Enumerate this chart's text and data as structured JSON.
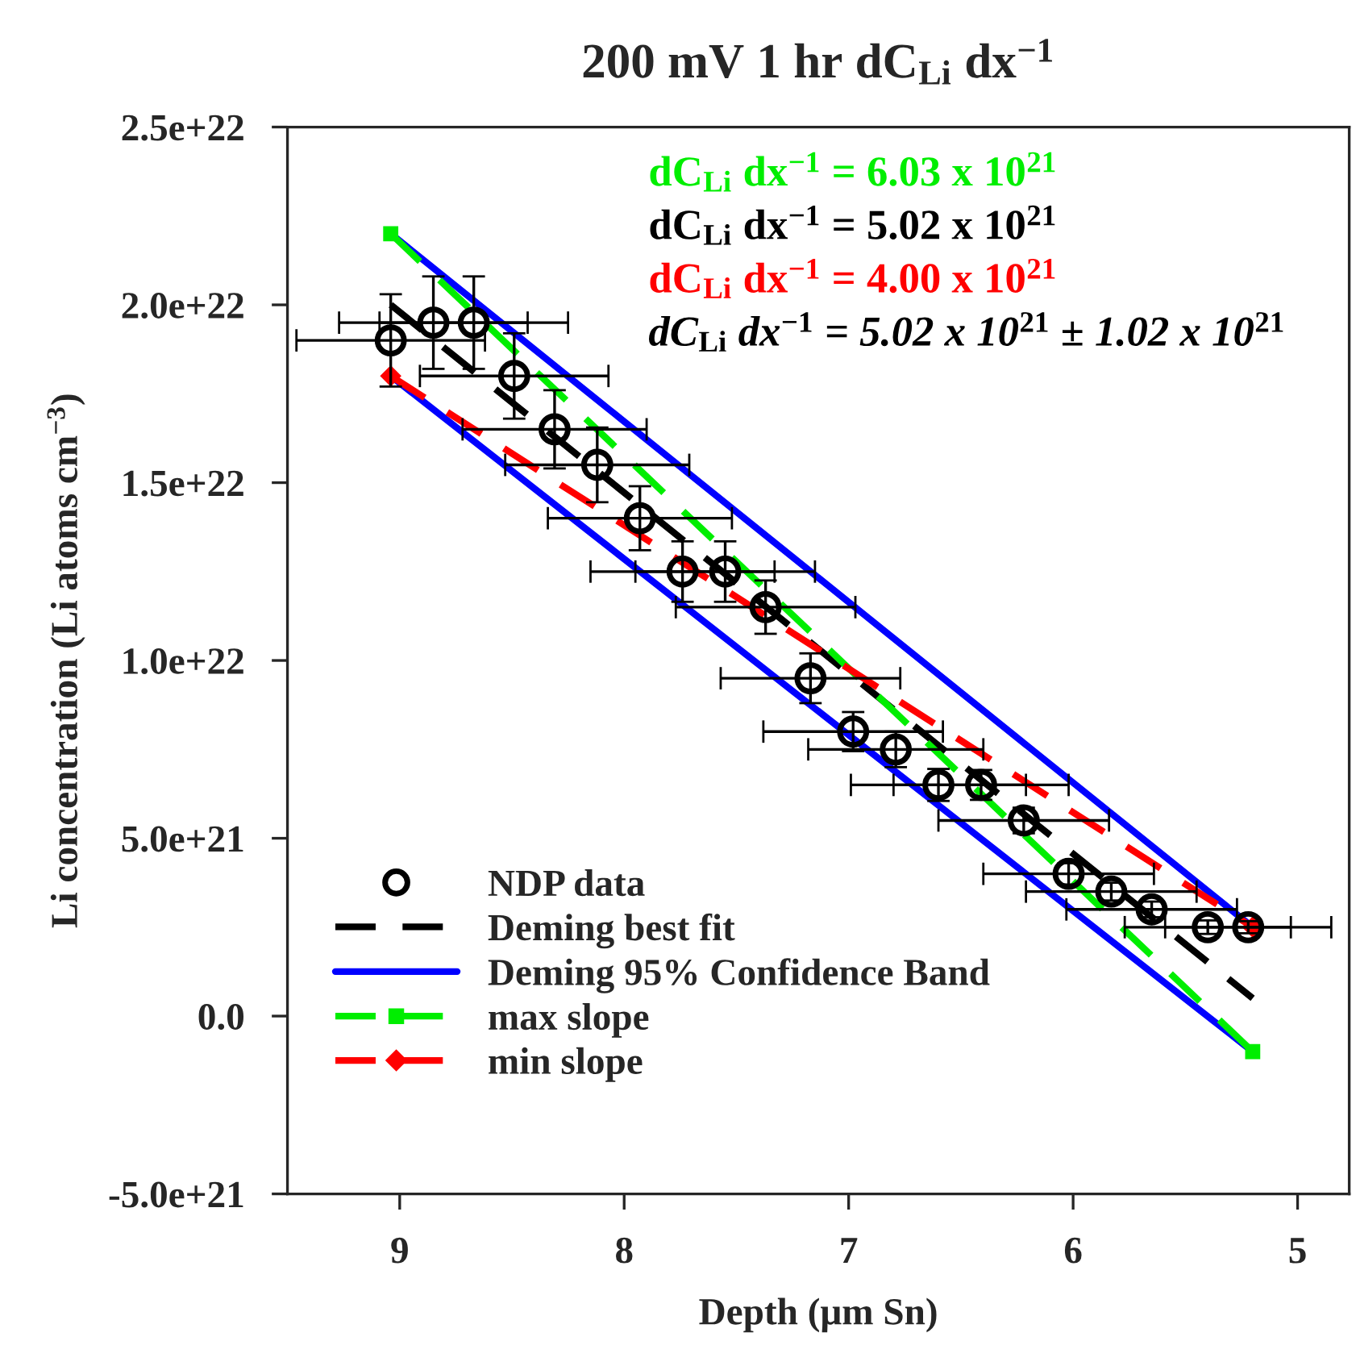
{
  "chart_data": {
    "type": "scatter",
    "title": "200 mV 1 hr dC$_{Li}$ dx$^{−1}$",
    "xlabel": "Depth (μm Sn)",
    "ylabel": "Li concentration (Li atoms cm$^{−3}$)",
    "xlim": [
      9.5,
      4.77
    ],
    "xticks": [
      9,
      8,
      7,
      6,
      5
    ],
    "ylim": [
      -5e+21,
      2.5e+22
    ],
    "yticks": [
      {
        "value": -5e+21,
        "label": "-5.0e+21"
      },
      {
        "value": 0,
        "label": "0.0"
      },
      {
        "value": 5e+21,
        "label": "5.0e+21"
      },
      {
        "value": 1e+22,
        "label": "1.0e+22"
      },
      {
        "value": 1.5e+22,
        "label": "1.5e+22"
      },
      {
        "value": 2e+22,
        "label": "2.0e+22"
      },
      {
        "value": 2.5e+22,
        "label": "2.5e+22"
      }
    ],
    "grid": false,
    "legend": "bottom left",
    "series": [
      {
        "name": "NDP data",
        "marker": "circle",
        "color": "#000000",
        "x": [
          9.04,
          8.85,
          8.67,
          8.49,
          8.31,
          8.12,
          7.93,
          7.74,
          7.55,
          7.37,
          7.17,
          6.98,
          6.79,
          6.6,
          6.41,
          6.22,
          6.02,
          5.83,
          5.65,
          5.4,
          5.22
        ],
        "values": [
          1.9e+22,
          1.95e+22,
          1.95e+22,
          1.8e+22,
          1.65e+22,
          1.55e+22,
          1.4e+22,
          1.25e+22,
          1.25e+22,
          1.15e+22,
          9.5e+21,
          8e+21,
          7.5e+21,
          6.5e+21,
          6.5e+21,
          5.5e+21,
          4e+21,
          3.5e+21,
          3e+21,
          2.5e+21,
          2.5e+21
        ],
        "errors": [
          1.3e+21,
          1.3e+21,
          1.3e+21,
          1.2e+21,
          1.1e+21,
          1.05e+21,
          9e+20,
          8.5e+20,
          8.5e+20,
          7.5e+20,
          7e+20,
          5.5e+20,
          5e+20,
          4.5e+20,
          4.2e+20,
          3.6e+20,
          3e+20,
          2.5e+20,
          2.2e+20,
          1.9e+20,
          1.7e+20
        ],
        "xerrors": [
          0.42,
          0.42,
          0.42,
          0.42,
          0.41,
          0.41,
          0.41,
          0.41,
          0.4,
          0.4,
          0.4,
          0.4,
          0.39,
          0.39,
          0.39,
          0.38,
          0.38,
          0.38,
          0.38,
          0.37,
          0.37
        ]
      },
      {
        "name": "Deming best fit",
        "type": "line",
        "line_style": "dashed",
        "color": "#000000",
        "x": [
          9.04,
          5.2
        ],
        "values": [
          2e+22,
          5e+20
        ]
      },
      {
        "name": "Deming 95% Confidence Band",
        "type": "line",
        "line_style": "solid",
        "color": "#0000ff",
        "x": [
          9.04,
          5.2
        ],
        "values": [
          2.2e+22,
          2.5e+21
        ]
      },
      {
        "type": "line",
        "line_style": "solid",
        "color": "#0000ff",
        "x": [
          9.04,
          5.2
        ],
        "values": [
          1.8e+22,
          -1e+21
        ]
      },
      {
        "name": "max slope",
        "type": "line",
        "line_style": "dashed",
        "marker": "square",
        "color": "#00ee00",
        "x": [
          9.04,
          5.2
        ],
        "values": [
          2.2e+22,
          -1e+21
        ]
      },
      {
        "name": "min slope",
        "type": "line",
        "line_style": "dashed",
        "marker": "diamond",
        "color": "#ff0000",
        "x": [
          9.04,
          5.2
        ],
        "values": [
          1.8e+22,
          2.5e+21
        ]
      }
    ],
    "annotations": [
      "dC$_{Li}$ dx$^{−1}$ = 6.03 x 10$^{21}$",
      "dC$_{Li}$ dx$^{−1}$ = 5.02 x 10$^{21}$",
      "dC$_{Li}$ dx$^{−1}$ = 4.00 x 10$^{21}$",
      "dC$_{Li}$ dx$^{−1}$ = 5.02 x 10$^{21}$ ± 1.02 x 10$^{21}$"
    ]
  }
}
